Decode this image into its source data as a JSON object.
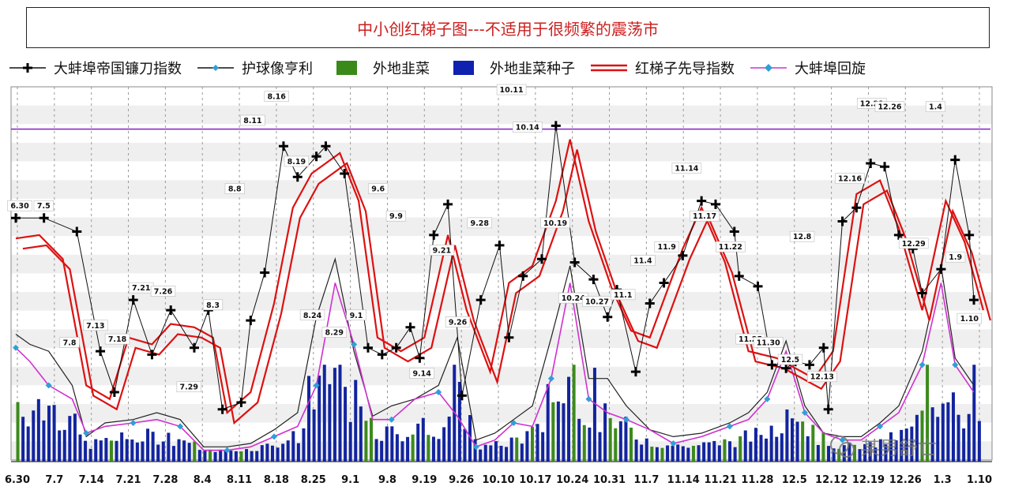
{
  "chart_data": {
    "type": "line",
    "title": "中小创红梯子图---不适用于很频繁的震荡市",
    "legend": [
      {
        "name": "大蚌埠帝国镰刀指数",
        "color": "#111111",
        "marker": "cross"
      },
      {
        "name": "护球像亨利",
        "color": "#111111",
        "marker": "line"
      },
      {
        "name": "外地韭菜",
        "color": "#3a8a1a",
        "marker": "bar"
      },
      {
        "name": "外地韭菜种子",
        "color": "#1020b0",
        "marker": "bar"
      },
      {
        "name": "红梯子先导指数",
        "color": "#dd1111",
        "marker": "double-line"
      },
      {
        "name": "大蚌埠回旋",
        "color": "#cc33cc",
        "marker": "diamond"
      }
    ],
    "x_tick_labels": [
      "6.30",
      "7.7",
      "7.14",
      "7.21",
      "7.28",
      "8.4",
      "8.11",
      "8.18",
      "8.25",
      "9.1",
      "9.8",
      "9.19",
      "9.26",
      "10.10",
      "10.17",
      "10.24",
      "10.31",
      "11.7",
      "11.14",
      "11.21",
      "11.28",
      "12.5",
      "12.12",
      "12.19",
      "12.26",
      "1.3",
      "1.10"
    ],
    "ylim": [
      0,
      100
    ],
    "reference_line": 95,
    "series": [
      {
        "name": "大蚌埠帝国镰刀指数",
        "points": [
          [
            0,
            69
          ],
          [
            0.6,
            69
          ],
          [
            1.3,
            65
          ],
          [
            1.8,
            30
          ],
          [
            2.1,
            18
          ],
          [
            2.5,
            45
          ],
          [
            2.9,
            29
          ],
          [
            3.3,
            42
          ],
          [
            3.8,
            31
          ],
          [
            4.1,
            42
          ],
          [
            4.4,
            13
          ],
          [
            4.8,
            15
          ],
          [
            5,
            39
          ],
          [
            5.3,
            53
          ],
          [
            5.7,
            90
          ],
          [
            6,
            81
          ],
          [
            6.4,
            87
          ],
          [
            6.6,
            90
          ],
          [
            7,
            82
          ],
          [
            7.5,
            31
          ],
          [
            7.8,
            29
          ],
          [
            8.1,
            31
          ],
          [
            8.4,
            37
          ],
          [
            8.6,
            28
          ],
          [
            8.9,
            64
          ],
          [
            9.2,
            73
          ],
          [
            9.5,
            17
          ],
          [
            9.9,
            45
          ],
          [
            10.3,
            61
          ],
          [
            10.5,
            34
          ],
          [
            10.8,
            52
          ],
          [
            11.2,
            57
          ],
          [
            11.5,
            96
          ],
          [
            11.9,
            56
          ],
          [
            12.3,
            51
          ],
          [
            12.6,
            40
          ],
          [
            12.8,
            48
          ],
          [
            13.2,
            24
          ],
          [
            13.5,
            44
          ],
          [
            13.8,
            50
          ],
          [
            14.2,
            58
          ],
          [
            14.6,
            74
          ],
          [
            14.9,
            73
          ],
          [
            15.3,
            65
          ],
          [
            15.4,
            52
          ],
          [
            15.8,
            49
          ],
          [
            16.1,
            26
          ],
          [
            16.4,
            25
          ],
          [
            16.6,
            27
          ],
          [
            16.9,
            26
          ],
          [
            17.2,
            31
          ],
          [
            17.3,
            13
          ],
          [
            17.6,
            68
          ],
          [
            17.9,
            72
          ],
          [
            18.2,
            85
          ],
          [
            18.5,
            84
          ],
          [
            18.8,
            64
          ],
          [
            19.1,
            60
          ],
          [
            19.3,
            47
          ],
          [
            19.7,
            54
          ],
          [
            20,
            86
          ],
          [
            20.3,
            64
          ],
          [
            20.4,
            45
          ]
        ]
      },
      {
        "name": "红梯子先导指数",
        "points": [
          [
            0,
            63
          ],
          [
            0.5,
            64
          ],
          [
            1,
            57
          ],
          [
            1.5,
            20
          ],
          [
            2,
            16
          ],
          [
            2.4,
            34
          ],
          [
            2.9,
            32
          ],
          [
            3.3,
            38
          ],
          [
            3.8,
            37
          ],
          [
            4.2,
            34
          ],
          [
            4.5,
            12
          ],
          [
            5,
            18
          ],
          [
            5.5,
            44
          ],
          [
            5.9,
            72
          ],
          [
            6.3,
            82
          ],
          [
            6.9,
            88
          ],
          [
            7.3,
            74
          ],
          [
            7.7,
            34
          ],
          [
            8.2,
            30
          ],
          [
            8.7,
            34
          ],
          [
            9.2,
            64
          ],
          [
            9.6,
            42
          ],
          [
            10.1,
            24
          ],
          [
            10.5,
            50
          ],
          [
            11,
            55
          ],
          [
            11.5,
            74
          ],
          [
            11.8,
            92
          ],
          [
            12.2,
            68
          ],
          [
            12.7,
            48
          ],
          [
            13.1,
            36
          ],
          [
            13.5,
            34
          ],
          [
            14.2,
            60
          ],
          [
            14.6,
            72
          ],
          [
            15.1,
            56
          ],
          [
            15.6,
            30
          ],
          [
            16.2,
            28
          ],
          [
            17.0,
            22
          ],
          [
            17.4,
            30
          ],
          [
            17.9,
            76
          ],
          [
            18.4,
            80
          ],
          [
            18.8,
            66
          ],
          [
            19.3,
            42
          ],
          [
            19.8,
            74
          ],
          [
            20.2,
            62
          ],
          [
            20.6,
            42
          ]
        ]
      },
      {
        "name": "大蚌埠回旋",
        "points": [
          [
            0,
            31
          ],
          [
            0.3,
            27
          ],
          [
            0.7,
            20
          ],
          [
            1.2,
            16
          ],
          [
            1.5,
            6
          ],
          [
            1.9,
            8
          ],
          [
            2.5,
            9
          ],
          [
            3,
            10
          ],
          [
            3.5,
            8
          ],
          [
            4,
            1
          ],
          [
            4.5,
            1
          ],
          [
            5,
            2
          ],
          [
            5.5,
            5
          ],
          [
            6,
            8
          ],
          [
            6.4,
            20
          ],
          [
            6.8,
            50
          ],
          [
            7.2,
            32
          ],
          [
            7.6,
            10
          ],
          [
            8,
            10
          ],
          [
            8.5,
            16
          ],
          [
            9,
            18
          ],
          [
            9.4,
            11
          ],
          [
            9.8,
            2
          ],
          [
            10.2,
            4
          ],
          [
            10.6,
            9
          ],
          [
            11,
            8
          ],
          [
            11.4,
            22
          ],
          [
            11.8,
            50
          ],
          [
            12.2,
            16
          ],
          [
            12.6,
            12
          ],
          [
            13,
            10
          ],
          [
            13.5,
            7
          ],
          [
            14,
            3
          ],
          [
            14.6,
            5
          ],
          [
            15.2,
            8
          ],
          [
            15.6,
            10
          ],
          [
            16,
            16
          ],
          [
            16.4,
            30
          ],
          [
            16.8,
            12
          ],
          [
            17.2,
            6
          ],
          [
            17.6,
            4
          ],
          [
            18,
            4
          ],
          [
            18.4,
            8
          ],
          [
            18.8,
            12
          ],
          [
            19.3,
            26
          ],
          [
            19.7,
            50
          ],
          [
            20,
            26
          ],
          [
            20.4,
            18
          ]
        ]
      },
      {
        "name": "护球像亨利",
        "points": [
          [
            0,
            35
          ],
          [
            0.3,
            32
          ],
          [
            0.7,
            30
          ],
          [
            1.2,
            20
          ],
          [
            1.5,
            5
          ],
          [
            1.9,
            9
          ],
          [
            2.5,
            10
          ],
          [
            3,
            12
          ],
          [
            3.5,
            10
          ],
          [
            4,
            2
          ],
          [
            4.5,
            2
          ],
          [
            5,
            3
          ],
          [
            5.5,
            7
          ],
          [
            6,
            12
          ],
          [
            6.4,
            40
          ],
          [
            6.8,
            57
          ],
          [
            7.2,
            30
          ],
          [
            7.6,
            11
          ],
          [
            8,
            14
          ],
          [
            8.5,
            16
          ],
          [
            9,
            20
          ],
          [
            9.4,
            34
          ],
          [
            9.8,
            4
          ],
          [
            10.2,
            6
          ],
          [
            10.6,
            10
          ],
          [
            11,
            14
          ],
          [
            11.4,
            34
          ],
          [
            11.8,
            55
          ],
          [
            12.2,
            22
          ],
          [
            12.6,
            22
          ],
          [
            13,
            14
          ],
          [
            13.5,
            7
          ],
          [
            14,
            5
          ],
          [
            14.6,
            6
          ],
          [
            15.2,
            9
          ],
          [
            15.6,
            12
          ],
          [
            16,
            18
          ],
          [
            16.4,
            33
          ],
          [
            16.8,
            14
          ],
          [
            17.2,
            6
          ],
          [
            17.6,
            5
          ],
          [
            18,
            5
          ],
          [
            18.4,
            9
          ],
          [
            18.8,
            14
          ],
          [
            19.3,
            30
          ],
          [
            19.7,
            55
          ],
          [
            20,
            28
          ],
          [
            20.4,
            20
          ]
        ]
      }
    ],
    "bars_seeds": {
      "green": "外地韭菜",
      "blue": "外地韭菜种子"
    },
    "annotations": [
      {
        "label": "6.30",
        "x": 0.1,
        "y": 72
      },
      {
        "label": "7.5",
        "x": 0.7,
        "y": 72
      },
      {
        "label": "7.8",
        "x": 1.35,
        "y": 32
      },
      {
        "label": "7.13",
        "x": 2.0,
        "y": 37
      },
      {
        "label": "7.18",
        "x": 2.55,
        "y": 33
      },
      {
        "label": "7.21",
        "x": 3.15,
        "y": 48
      },
      {
        "label": "7.26",
        "x": 3.7,
        "y": 47
      },
      {
        "label": "7.29",
        "x": 4.35,
        "y": 19
      },
      {
        "label": "8.3",
        "x": 4.95,
        "y": 43
      },
      {
        "label": "8.8",
        "x": 5.5,
        "y": 77
      },
      {
        "label": "8.11",
        "x": 5.95,
        "y": 97
      },
      {
        "label": "8.16",
        "x": 6.55,
        "y": 104
      },
      {
        "label": "8.19",
        "x": 7.05,
        "y": 85
      },
      {
        "label": "8.24",
        "x": 7.45,
        "y": 40
      },
      {
        "label": "8.29",
        "x": 8.0,
        "y": 35
      },
      {
        "label": "9.1",
        "x": 8.55,
        "y": 40
      },
      {
        "label": "9.6",
        "x": 9.1,
        "y": 77
      },
      {
        "label": "9.9",
        "x": 9.55,
        "y": 69
      },
      {
        "label": "9.14",
        "x": 10.2,
        "y": 23
      },
      {
        "label": "9.21",
        "x": 10.7,
        "y": 59
      },
      {
        "label": "9.26",
        "x": 11.1,
        "y": 38
      },
      {
        "label": "9.28",
        "x": 11.65,
        "y": 67
      },
      {
        "label": "10.11",
        "x": 12.45,
        "y": 106
      },
      {
        "label": "10.14",
        "x": 12.85,
        "y": 95
      },
      {
        "label": "10.19",
        "x": 13.55,
        "y": 67
      },
      {
        "label": "10.24",
        "x": 14.0,
        "y": 45
      },
      {
        "label": "10.27",
        "x": 14.6,
        "y": 44
      },
      {
        "label": "11.1",
        "x": 15.25,
        "y": 46
      },
      {
        "label": "11.4",
        "x": 15.75,
        "y": 56
      },
      {
        "label": "11.9",
        "x": 16.35,
        "y": 60
      },
      {
        "label": "11.14",
        "x": 16.85,
        "y": 83
      },
      {
        "label": "11.17",
        "x": 17.3,
        "y": 69
      },
      {
        "label": "11.22",
        "x": 17.95,
        "y": 60
      },
      {
        "label": "11.25",
        "x": 18.45,
        "y": 33
      },
      {
        "label": "11.30",
        "x": 18.9,
        "y": 32
      },
      {
        "label": "12.5",
        "x": 19.45,
        "y": 27
      },
      {
        "label": "12.8",
        "x": 19.75,
        "y": 63
      },
      {
        "label": "12.13",
        "x": 20.25,
        "y": 22
      },
      {
        "label": "12.16",
        "x": 20.95,
        "y": 80
      },
      {
        "label": "12.21",
        "x": 21.5,
        "y": 102
      },
      {
        "label": "12.26",
        "x": 21.95,
        "y": 101
      },
      {
        "label": "12.29",
        "x": 22.55,
        "y": 61
      },
      {
        "label": "1.4",
        "x": 23.1,
        "y": 101
      },
      {
        "label": "1.9",
        "x": 23.6,
        "y": 57
      },
      {
        "label": "1.10",
        "x": 23.95,
        "y": 39
      }
    ]
  }
}
